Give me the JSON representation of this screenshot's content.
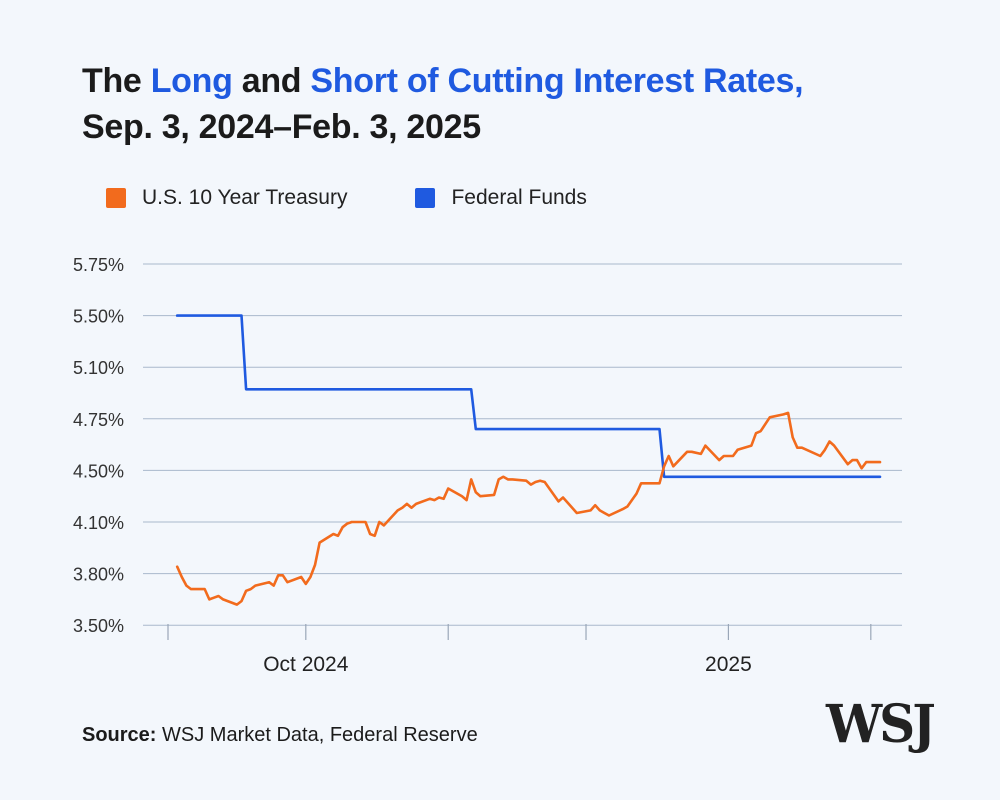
{
  "title": {
    "part1": "The ",
    "long": "Long",
    "part2": " and ",
    "short": "Short of Cutting Interest Rates,",
    "line2": "Sep. 3, 2024–Feb. 3, 2025"
  },
  "legend": [
    {
      "label": "U.S. 10 Year Treasury",
      "color": "#f26b1d"
    },
    {
      "label": "Federal Funds",
      "color": "#1f5ae0"
    }
  ],
  "source": {
    "label": "Source:",
    "text": "WSJ Market Data, Federal Reserve"
  },
  "logo": "WSJ",
  "chart_data": {
    "type": "line",
    "title": "The Long and Short of Cutting Interest Rates, Sep. 3, 2024–Feb. 3, 2025",
    "xlabel": "",
    "ylabel": "",
    "grid": true,
    "legend_position": "top-left",
    "x_range": [
      "2024-09-03",
      "2025-02-03"
    ],
    "x_tick_labels": [
      {
        "label": "Oct 2024",
        "date": "2024-10-01"
      },
      {
        "label": "2025",
        "date": "2025-01-01"
      }
    ],
    "x_minor_ticks": [
      "2024-09-01",
      "2024-10-01",
      "2024-11-01",
      "2024-12-01",
      "2025-01-01",
      "2025-02-01"
    ],
    "y_ticks": [
      "5.75%",
      "5.50%",
      "5.10%",
      "4.75%",
      "4.50%",
      "4.10%",
      "3.80%",
      "3.50%"
    ],
    "series": [
      {
        "name": "Federal Funds",
        "color": "#1f5ae0",
        "points": [
          [
            "2024-09-03",
            5.5
          ],
          [
            "2024-09-17",
            5.5
          ],
          [
            "2024-09-18",
            4.95
          ],
          [
            "2024-11-06",
            4.95
          ],
          [
            "2024-11-07",
            4.7
          ],
          [
            "2024-12-17",
            4.7
          ],
          [
            "2024-12-18",
            4.45
          ],
          [
            "2025-02-03",
            4.45
          ]
        ]
      },
      {
        "name": "U.S. 10 Year Treasury",
        "color": "#f26b1d",
        "points": [
          [
            "2024-09-03",
            3.84
          ],
          [
            "2024-09-04",
            3.78
          ],
          [
            "2024-09-05",
            3.73
          ],
          [
            "2024-09-06",
            3.71
          ],
          [
            "2024-09-09",
            3.71
          ],
          [
            "2024-09-10",
            3.65
          ],
          [
            "2024-09-11",
            3.66
          ],
          [
            "2024-09-12",
            3.67
          ],
          [
            "2024-09-13",
            3.65
          ],
          [
            "2024-09-16",
            3.62
          ],
          [
            "2024-09-17",
            3.64
          ],
          [
            "2024-09-18",
            3.7
          ],
          [
            "2024-09-19",
            3.71
          ],
          [
            "2024-09-20",
            3.73
          ],
          [
            "2024-09-23",
            3.75
          ],
          [
            "2024-09-24",
            3.73
          ],
          [
            "2024-09-25",
            3.79
          ],
          [
            "2024-09-26",
            3.79
          ],
          [
            "2024-09-27",
            3.75
          ],
          [
            "2024-09-30",
            3.78
          ],
          [
            "2024-10-01",
            3.74
          ],
          [
            "2024-10-02",
            3.78
          ],
          [
            "2024-10-03",
            3.85
          ],
          [
            "2024-10-04",
            3.98
          ],
          [
            "2024-10-07",
            4.03
          ],
          [
            "2024-10-08",
            4.02
          ],
          [
            "2024-10-09",
            4.07
          ],
          [
            "2024-10-10",
            4.09
          ],
          [
            "2024-10-11",
            4.1
          ],
          [
            "2024-10-14",
            4.1
          ],
          [
            "2024-10-15",
            4.03
          ],
          [
            "2024-10-16",
            4.02
          ],
          [
            "2024-10-17",
            4.1
          ],
          [
            "2024-10-18",
            4.08
          ],
          [
            "2024-10-21",
            4.19
          ],
          [
            "2024-10-22",
            4.21
          ],
          [
            "2024-10-23",
            4.24
          ],
          [
            "2024-10-24",
            4.21
          ],
          [
            "2024-10-25",
            4.24
          ],
          [
            "2024-10-28",
            4.28
          ],
          [
            "2024-10-29",
            4.27
          ],
          [
            "2024-10-30",
            4.29
          ],
          [
            "2024-10-31",
            4.28
          ],
          [
            "2024-11-01",
            4.36
          ],
          [
            "2024-11-04",
            4.3
          ],
          [
            "2024-11-05",
            4.27
          ],
          [
            "2024-11-06",
            4.43
          ],
          [
            "2024-11-07",
            4.33
          ],
          [
            "2024-11-08",
            4.3
          ],
          [
            "2024-11-11",
            4.31
          ],
          [
            "2024-11-12",
            4.43
          ],
          [
            "2024-11-13",
            4.45
          ],
          [
            "2024-11-14",
            4.43
          ],
          [
            "2024-11-15",
            4.43
          ],
          [
            "2024-11-18",
            4.42
          ],
          [
            "2024-11-19",
            4.39
          ],
          [
            "2024-11-20",
            4.41
          ],
          [
            "2024-11-21",
            4.42
          ],
          [
            "2024-11-22",
            4.41
          ],
          [
            "2024-11-25",
            4.26
          ],
          [
            "2024-11-26",
            4.29
          ],
          [
            "2024-11-27",
            4.25
          ],
          [
            "2024-11-29",
            4.17
          ],
          [
            "2024-12-02",
            4.19
          ],
          [
            "2024-12-03",
            4.23
          ],
          [
            "2024-12-04",
            4.19
          ],
          [
            "2024-12-05",
            4.17
          ],
          [
            "2024-12-06",
            4.15
          ],
          [
            "2024-12-09",
            4.2
          ],
          [
            "2024-12-10",
            4.22
          ],
          [
            "2024-12-11",
            4.27
          ],
          [
            "2024-12-12",
            4.32
          ],
          [
            "2024-12-13",
            4.4
          ],
          [
            "2024-12-16",
            4.4
          ],
          [
            "2024-12-17",
            4.4
          ],
          [
            "2024-12-18",
            4.52
          ],
          [
            "2024-12-19",
            4.57
          ],
          [
            "2024-12-20",
            4.52
          ],
          [
            "2024-12-23",
            4.59
          ],
          [
            "2024-12-24",
            4.59
          ],
          [
            "2024-12-26",
            4.58
          ],
          [
            "2024-12-27",
            4.62
          ],
          [
            "2024-12-30",
            4.55
          ],
          [
            "2024-12-31",
            4.57
          ],
          [
            "2025-01-02",
            4.57
          ],
          [
            "2025-01-03",
            4.6
          ],
          [
            "2025-01-06",
            4.62
          ],
          [
            "2025-01-07",
            4.68
          ],
          [
            "2025-01-08",
            4.69
          ],
          [
            "2025-01-10",
            4.76
          ],
          [
            "2025-01-13",
            4.78
          ],
          [
            "2025-01-14",
            4.79
          ],
          [
            "2025-01-15",
            4.66
          ],
          [
            "2025-01-16",
            4.61
          ],
          [
            "2025-01-17",
            4.61
          ],
          [
            "2025-01-21",
            4.57
          ],
          [
            "2025-01-22",
            4.6
          ],
          [
            "2025-01-23",
            4.64
          ],
          [
            "2025-01-24",
            4.62
          ],
          [
            "2025-01-27",
            4.53
          ],
          [
            "2025-01-28",
            4.55
          ],
          [
            "2025-01-29",
            4.55
          ],
          [
            "2025-01-30",
            4.51
          ],
          [
            "2025-01-31",
            4.54
          ],
          [
            "2025-02-03",
            4.54
          ]
        ]
      }
    ]
  }
}
